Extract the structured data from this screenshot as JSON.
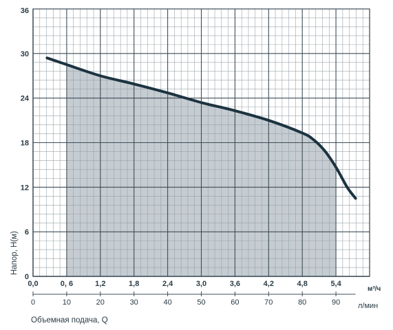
{
  "chart_data": {
    "type": "area",
    "xlabel": "Объемная подача, Q",
    "ylabel": "Напор, H(м)",
    "x_unit_primary": "м³/ч",
    "x_unit_secondary": "л/мин",
    "xlim": [
      0,
      6.0
    ],
    "ylim": [
      0,
      36
    ],
    "x_ticks_primary": [
      "0,0",
      "0, 6",
      "1,2",
      "1,8",
      "2,4",
      "3,0",
      "3,6",
      "4,2",
      "4,8",
      "5,4"
    ],
    "x_ticks_primary_values": [
      0,
      0.6,
      1.2,
      1.8,
      2.4,
      3.0,
      3.6,
      4.2,
      4.8,
      5.4
    ],
    "x_ticks_secondary": [
      "0",
      "10",
      "20",
      "30",
      "40",
      "50",
      "60",
      "70",
      "80",
      "90"
    ],
    "y_ticks": [
      "0",
      "6",
      "12",
      "18",
      "24",
      "30",
      "36"
    ],
    "y_tick_values": [
      0,
      6,
      12,
      18,
      24,
      30,
      36
    ],
    "grid": true,
    "shaded_range_x": [
      0.6,
      5.4
    ],
    "series": [
      {
        "x": [
          0.25,
          0.6,
          1.2,
          1.8,
          2.4,
          3.0,
          3.6,
          4.2,
          4.8,
          5.0,
          5.2,
          5.4,
          5.6,
          5.75
        ],
        "y": [
          29.4,
          28.5,
          27.0,
          25.9,
          24.7,
          23.4,
          22.3,
          21.0,
          19.3,
          18.4,
          16.9,
          14.7,
          12.0,
          10.5
        ]
      }
    ],
    "colors": {
      "curve": "#1c3340",
      "fill": "#c5ccd2",
      "grid_minor": "#9aa3aa",
      "grid_major": "#3e4d57",
      "text": "#2a3b45"
    }
  }
}
